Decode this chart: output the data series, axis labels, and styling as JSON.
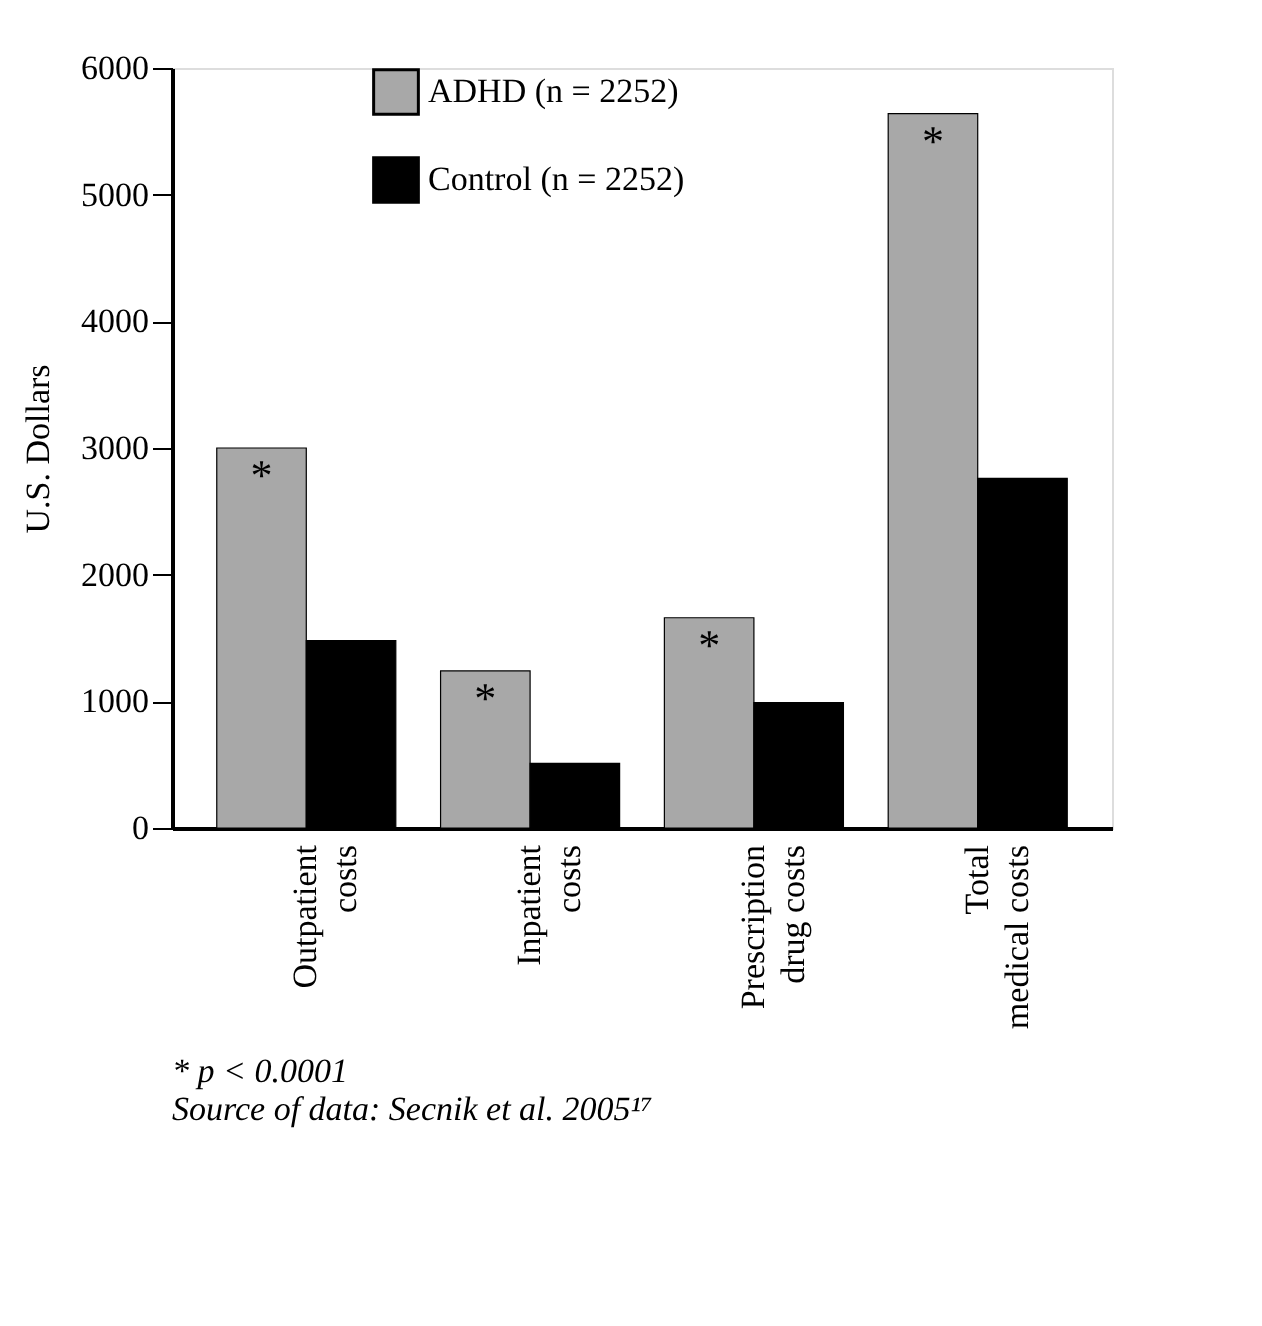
{
  "chart_data": {
    "type": "bar",
    "ylabel": "U.S. Dollars",
    "categories": [
      "Outpatient\ncosts",
      "Inpatient\ncosts",
      "Prescription\ndrug costs",
      "Total\nmedical costs"
    ],
    "series": [
      {
        "name": "ADHD (n = 2252)",
        "color": "#a8a8a8",
        "values": [
          3000,
          1240,
          1660,
          5640
        ],
        "value_labels": [
          "*",
          "*",
          "*",
          "*"
        ]
      },
      {
        "name": "Control (n = 2252)",
        "color": "#000000",
        "values": [
          1480,
          510,
          990,
          2760
        ]
      }
    ],
    "ylim": [
      0,
      6000
    ],
    "yticks": [
      0,
      1000,
      2000,
      3000,
      4000,
      5000,
      6000
    ],
    "grid": false,
    "legend": "top",
    "annotations": [
      "* p < 0.0001",
      "Source of data: Secnik et al. 2005¹⁷"
    ]
  }
}
